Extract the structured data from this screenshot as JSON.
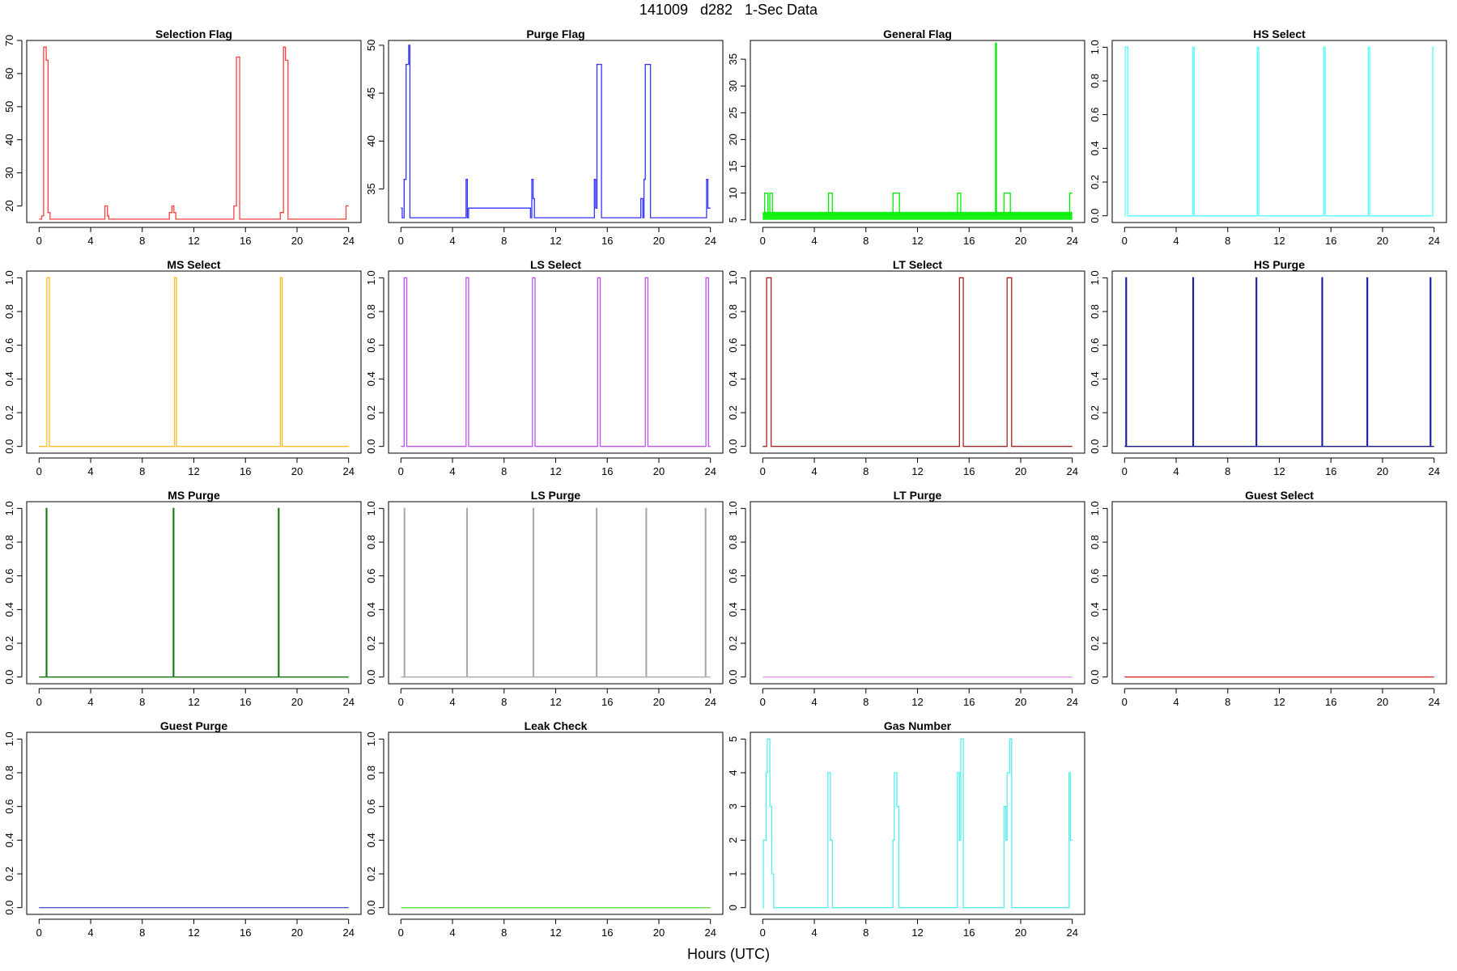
{
  "figure": {
    "title": "141009   d282   1-Sec Data",
    "xlabel": "Hours (UTC)"
  },
  "chart_data": [
    {
      "type": "line",
      "step": true,
      "title": "Selection Flag",
      "color": "#ff4040",
      "xlim": [
        0,
        24
      ],
      "xticks": [
        0,
        4,
        8,
        12,
        16,
        20,
        24
      ],
      "ylim": [
        15,
        70
      ],
      "yticks": [
        20,
        30,
        40,
        50,
        60,
        70
      ],
      "x": [
        0,
        0.2,
        0.2,
        0.35,
        0.35,
        0.55,
        0.55,
        0.7,
        0.7,
        0.85,
        0.85,
        5.1,
        5.1,
        5.3,
        5.3,
        5.4,
        5.4,
        10.1,
        10.1,
        10.3,
        10.3,
        10.45,
        10.45,
        10.6,
        10.6,
        15.1,
        15.1,
        15.3,
        15.3,
        15.55,
        15.55,
        18.7,
        18.7,
        18.95,
        18.95,
        19.1,
        19.1,
        19.3,
        19.3,
        23.8,
        23.8,
        24
      ],
      "y": [
        16,
        16,
        17,
        17,
        68,
        68,
        64,
        64,
        18,
        18,
        16,
        16,
        20,
        20,
        17,
        17,
        16,
        16,
        18,
        18,
        20,
        20,
        18,
        18,
        16,
        16,
        20,
        20,
        65,
        65,
        16,
        16,
        18,
        18,
        68,
        68,
        64,
        64,
        16,
        16,
        20,
        20
      ]
    },
    {
      "type": "line",
      "step": true,
      "title": "Purge Flag",
      "color": "#3333ff",
      "xlim": [
        0,
        24
      ],
      "xticks": [
        0,
        4,
        8,
        12,
        16,
        20,
        24
      ],
      "ylim": [
        31.5,
        50.5
      ],
      "yticks": [
        35,
        40,
        45,
        50
      ],
      "x": [
        0,
        0.1,
        0.1,
        0.25,
        0.25,
        0.4,
        0.4,
        0.6,
        0.6,
        0.7,
        0.7,
        5.05,
        5.05,
        5.15,
        5.15,
        5.25,
        5.25,
        10.05,
        10.05,
        10.15,
        10.15,
        10.25,
        10.25,
        10.35,
        10.35,
        15.0,
        15.0,
        15.1,
        15.1,
        15.2,
        15.2,
        15.55,
        15.55,
        18.6,
        18.6,
        18.75,
        18.75,
        18.85,
        18.85,
        18.95,
        18.95,
        19.35,
        19.35,
        23.7,
        23.7,
        23.8,
        23.8,
        24
      ],
      "y": [
        33,
        33,
        32,
        32,
        36,
        36,
        48,
        48,
        50,
        50,
        32,
        32,
        36,
        36,
        32,
        32,
        33,
        33,
        32,
        32,
        36,
        36,
        34,
        34,
        32,
        32,
        36,
        36,
        33,
        33,
        48,
        48,
        32,
        32,
        34,
        34,
        32,
        32,
        36,
        36,
        48,
        48,
        32,
        32,
        36,
        36,
        33,
        33
      ]
    },
    {
      "type": "line",
      "step": true,
      "title": "General Flag",
      "color": "#00ee00",
      "xlim": [
        0,
        24
      ],
      "xticks": [
        0,
        4,
        8,
        12,
        16,
        20,
        24
      ],
      "ylim": [
        4.5,
        38.5
      ],
      "yticks": [
        5,
        10,
        15,
        20,
        25,
        30,
        35
      ],
      "x": [
        0,
        0.15,
        0.15,
        0.4,
        0.4,
        0.55,
        0.55,
        0.75,
        0.75,
        0.8,
        0.8,
        5.1,
        5.1,
        5.4,
        5.4,
        10.1,
        10.1,
        10.6,
        10.6,
        15.1,
        15.1,
        15.35,
        15.35,
        18.05,
        18.05,
        18.12,
        18.12,
        18.7,
        18.7,
        19.2,
        19.2,
        23.8,
        23.8,
        24
      ],
      "y": [
        6,
        6,
        10,
        10,
        6,
        6,
        10,
        10,
        6,
        6,
        6,
        6,
        10,
        10,
        6,
        6,
        10,
        10,
        6,
        6,
        10,
        10,
        6,
        6,
        38,
        38,
        6,
        6,
        10,
        10,
        6,
        6,
        10,
        10
      ],
      "noise_band": [
        5,
        6.5
      ]
    },
    {
      "type": "line",
      "step": true,
      "title": "HS Select",
      "color": "#55ffff",
      "xlim": [
        0,
        24
      ],
      "xticks": [
        0,
        4,
        8,
        12,
        16,
        20,
        24
      ],
      "ylim": [
        -0.04,
        1.04
      ],
      "yticks": [
        0.0,
        0.2,
        0.4,
        0.6,
        0.8,
        1.0
      ],
      "x": [
        0,
        0.05,
        0.05,
        0.25,
        0.25,
        5.3,
        5.3,
        5.4,
        5.4,
        10.3,
        10.3,
        10.4,
        10.4,
        15.45,
        15.45,
        15.55,
        15.55,
        18.9,
        18.9,
        19.0,
        19.0,
        23.9,
        23.9,
        24
      ],
      "y": [
        0,
        0,
        1,
        1,
        0,
        0,
        1,
        1,
        0,
        0,
        1,
        1,
        0,
        0,
        1,
        1,
        0,
        0,
        1,
        1,
        0,
        0,
        1,
        1
      ]
    },
    {
      "type": "line",
      "step": true,
      "title": "MS Select",
      "color": "#ffbb22",
      "xlim": [
        0,
        24
      ],
      "xticks": [
        0,
        4,
        8,
        12,
        16,
        20,
        24
      ],
      "ylim": [
        -0.04,
        1.04
      ],
      "yticks": [
        0.0,
        0.2,
        0.4,
        0.6,
        0.8,
        1.0
      ],
      "x": [
        0,
        0.6,
        0.6,
        0.8,
        0.8,
        10.5,
        10.5,
        10.65,
        10.65,
        18.7,
        18.7,
        18.85,
        18.85,
        24
      ],
      "y": [
        0,
        0,
        1,
        1,
        0,
        0,
        1,
        1,
        0,
        0,
        1,
        1,
        0,
        0
      ]
    },
    {
      "type": "line",
      "step": true,
      "title": "LS Select",
      "color": "#bb55ee",
      "xlim": [
        0,
        24
      ],
      "xticks": [
        0,
        4,
        8,
        12,
        16,
        20,
        24
      ],
      "ylim": [
        -0.04,
        1.04
      ],
      "yticks": [
        0.0,
        0.2,
        0.4,
        0.6,
        0.8,
        1.0
      ],
      "x": [
        0,
        0.25,
        0.25,
        0.45,
        0.45,
        5.05,
        5.05,
        5.25,
        5.25,
        10.2,
        10.2,
        10.4,
        10.4,
        15.25,
        15.25,
        15.45,
        15.45,
        18.95,
        18.95,
        19.15,
        19.15,
        23.65,
        23.65,
        23.85,
        23.85,
        24
      ],
      "y": [
        0,
        0,
        1,
        1,
        0,
        0,
        1,
        1,
        0,
        0,
        1,
        1,
        0,
        0,
        1,
        1,
        0,
        0,
        1,
        1,
        0,
        0,
        1,
        1,
        0,
        0
      ]
    },
    {
      "type": "line",
      "step": true,
      "title": "LT Select",
      "color": "#aa2222",
      "xlim": [
        0,
        24
      ],
      "xticks": [
        0,
        4,
        8,
        12,
        16,
        20,
        24
      ],
      "ylim": [
        -0.04,
        1.04
      ],
      "yticks": [
        0.0,
        0.2,
        0.4,
        0.6,
        0.8,
        1.0
      ],
      "x": [
        0,
        0.3,
        0.3,
        0.65,
        0.65,
        15.25,
        15.25,
        15.55,
        15.55,
        18.95,
        18.95,
        19.3,
        19.3,
        24
      ],
      "y": [
        0,
        0,
        1,
        1,
        0,
        0,
        1,
        1,
        0,
        0,
        1,
        1,
        0,
        0
      ]
    },
    {
      "type": "line",
      "step": true,
      "title": "HS Purge",
      "color": "#1a1a99",
      "xlim": [
        0,
        24
      ],
      "xticks": [
        0,
        4,
        8,
        12,
        16,
        20,
        24
      ],
      "ylim": [
        -0.04,
        1.04
      ],
      "yticks": [
        0.0,
        0.2,
        0.4,
        0.6,
        0.8,
        1.0
      ],
      "x": [
        0,
        0.1,
        0.1,
        0.15,
        0.15,
        5.3,
        5.3,
        5.35,
        5.35,
        10.2,
        10.2,
        10.25,
        10.25,
        15.3,
        15.3,
        15.35,
        15.35,
        18.8,
        18.8,
        18.85,
        18.85,
        23.7,
        23.7,
        23.75,
        23.75,
        24
      ],
      "y": [
        0,
        0,
        1,
        1,
        0,
        0,
        1,
        1,
        0,
        0,
        1,
        1,
        0,
        0,
        1,
        1,
        0,
        0,
        1,
        1,
        0,
        0,
        1,
        1,
        0,
        0
      ]
    },
    {
      "type": "line",
      "step": true,
      "title": "MS Purge",
      "color": "#117711",
      "xlim": [
        0,
        24
      ],
      "xticks": [
        0,
        4,
        8,
        12,
        16,
        20,
        24
      ],
      "ylim": [
        -0.04,
        1.04
      ],
      "yticks": [
        0.0,
        0.2,
        0.4,
        0.6,
        0.8,
        1.0
      ],
      "x": [
        0,
        0.55,
        0.55,
        0.6,
        0.6,
        10.4,
        10.4,
        10.45,
        10.45,
        18.55,
        18.55,
        18.6,
        18.6,
        24
      ],
      "y": [
        0,
        0,
        1,
        1,
        0,
        0,
        1,
        1,
        0,
        0,
        1,
        1,
        0,
        0
      ]
    },
    {
      "type": "line",
      "step": true,
      "title": "LS Purge",
      "color": "#aaaaaa",
      "xlim": [
        0,
        24
      ],
      "xticks": [
        0,
        4,
        8,
        12,
        16,
        20,
        24
      ],
      "ylim": [
        -0.04,
        1.04
      ],
      "yticks": [
        0.0,
        0.2,
        0.4,
        0.6,
        0.8,
        1.0
      ],
      "x": [
        0,
        0.25,
        0.25,
        0.3,
        0.3,
        5.1,
        5.1,
        5.15,
        5.15,
        10.25,
        10.25,
        10.3,
        10.3,
        15.15,
        15.15,
        15.2,
        15.2,
        19.0,
        19.0,
        19.05,
        19.05,
        23.6,
        23.6,
        23.65,
        23.65,
        24
      ],
      "y": [
        0,
        0,
        1,
        1,
        0,
        0,
        1,
        1,
        0,
        0,
        1,
        1,
        0,
        0,
        1,
        1,
        0,
        0,
        1,
        1,
        0,
        0,
        1,
        1,
        0,
        0
      ]
    },
    {
      "type": "line",
      "step": true,
      "title": "LT Purge",
      "color": "#ee99ee",
      "xlim": [
        0,
        24
      ],
      "xticks": [
        0,
        4,
        8,
        12,
        16,
        20,
        24
      ],
      "ylim": [
        -0.04,
        1.04
      ],
      "yticks": [
        0.0,
        0.2,
        0.4,
        0.6,
        0.8,
        1.0
      ],
      "x": [
        0,
        24
      ],
      "y": [
        0,
        0
      ]
    },
    {
      "type": "line",
      "step": true,
      "title": "Guest Select",
      "color": "#dd3333",
      "xlim": [
        0,
        24
      ],
      "xticks": [
        0,
        4,
        8,
        12,
        16,
        20,
        24
      ],
      "ylim": [
        -0.04,
        1.04
      ],
      "yticks": [
        0.0,
        0.2,
        0.4,
        0.6,
        0.8,
        1.0
      ],
      "x": [
        0,
        24
      ],
      "y": [
        0,
        0
      ]
    },
    {
      "type": "line",
      "step": true,
      "title": "Guest Purge",
      "color": "#5555cc",
      "xlim": [
        0,
        24
      ],
      "xticks": [
        0,
        4,
        8,
        12,
        16,
        20,
        24
      ],
      "ylim": [
        -0.04,
        1.04
      ],
      "yticks": [
        0.0,
        0.2,
        0.4,
        0.6,
        0.8,
        1.0
      ],
      "x": [
        0,
        24
      ],
      "y": [
        0,
        0
      ]
    },
    {
      "type": "line",
      "step": true,
      "title": "Leak Check",
      "color": "#66dd44",
      "xlim": [
        0,
        24
      ],
      "xticks": [
        0,
        4,
        8,
        12,
        16,
        20,
        24
      ],
      "ylim": [
        -0.04,
        1.04
      ],
      "yticks": [
        0.0,
        0.2,
        0.4,
        0.6,
        0.8,
        1.0
      ],
      "x": [
        0,
        24
      ],
      "y": [
        0,
        0
      ]
    },
    {
      "type": "line",
      "step": true,
      "title": "Gas Number",
      "color": "#55eeee",
      "xlim": [
        0,
        24
      ],
      "xticks": [
        0,
        4,
        8,
        12,
        16,
        20,
        24
      ],
      "ylim": [
        -0.2,
        5.2
      ],
      "yticks": [
        0,
        1,
        2,
        3,
        4,
        5
      ],
      "x": [
        0,
        0.05,
        0.05,
        0.25,
        0.25,
        0.35,
        0.35,
        0.55,
        0.55,
        0.7,
        0.7,
        0.85,
        0.85,
        5.05,
        5.05,
        5.25,
        5.25,
        5.4,
        5.4,
        10.1,
        10.1,
        10.2,
        10.2,
        10.4,
        10.4,
        10.55,
        10.55,
        15.1,
        15.1,
        15.25,
        15.25,
        15.35,
        15.35,
        15.55,
        15.55,
        18.7,
        18.7,
        18.85,
        18.85,
        18.95,
        18.95,
        19.15,
        19.15,
        19.3,
        19.3,
        23.75,
        23.75,
        23.85,
        23.85,
        24
      ],
      "y": [
        0,
        0,
        2,
        2,
        4,
        4,
        5,
        5,
        3,
        3,
        1,
        1,
        0,
        0,
        4,
        4,
        2,
        2,
        0,
        0,
        2,
        2,
        4,
        4,
        3,
        3,
        0,
        0,
        4,
        4,
        2,
        2,
        5,
        5,
        0,
        0,
        3,
        3,
        2,
        2,
        4,
        4,
        5,
        5,
        0,
        0,
        4,
        4,
        2,
        2
      ]
    }
  ]
}
